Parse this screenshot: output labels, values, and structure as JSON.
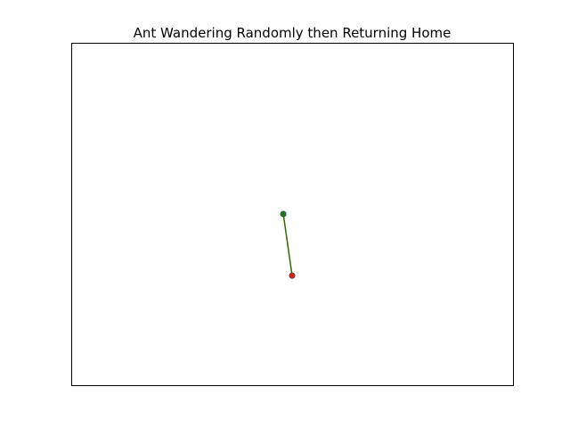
{
  "chart_data": {
    "type": "line",
    "title": "Ant Wandering Randomly then Returning Home",
    "xlabel": "",
    "ylabel": "",
    "xlim": [
      -10,
      10
    ],
    "ylim": [
      -10,
      10
    ],
    "grid": false,
    "axis_ticks": false,
    "series": [
      {
        "role": "path",
        "x": [
          -0.4,
          0.0
        ],
        "y": [
          0.0,
          -3.6
        ],
        "color": "#2f6b00"
      }
    ],
    "points": [
      {
        "role": "start",
        "x": -0.4,
        "y": 0.0,
        "color": "#1a7f1a"
      },
      {
        "role": "end",
        "x": 0.0,
        "y": -3.6,
        "color": "#e02020"
      }
    ]
  }
}
